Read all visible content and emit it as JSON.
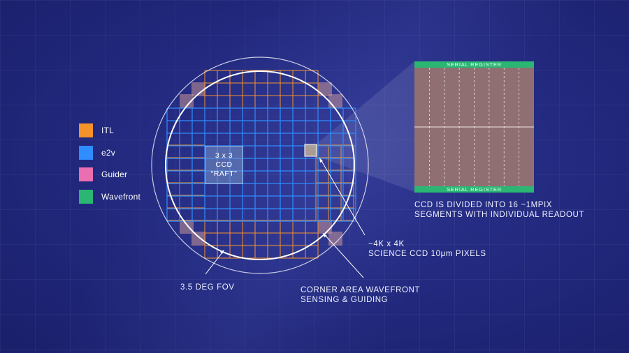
{
  "colors": {
    "itl": "#f5922a",
    "e2v": "#2f8dff",
    "guider": "#e96fb0",
    "wavefront": "#2bb673"
  },
  "legend": [
    {
      "label": "ITL",
      "color": "#f5922a"
    },
    {
      "label": "e2v",
      "color": "#2f8dff"
    },
    {
      "label": "Guider",
      "color": "#e96fb0"
    },
    {
      "label": "Wavefront",
      "color": "#2bb673"
    }
  ],
  "raft": {
    "line1": "3 x 3",
    "line2": "CCD",
    "line3": "“RAFT”"
  },
  "labels": {
    "fov": "3.5 DEG FOV",
    "corner_line1": "CORNER AREA WAVEFRONT",
    "corner_line2": "SENSING & GUIDING",
    "ccd_line1": "~4K x 4K",
    "ccd_line2": "SCIENCE CCD 10μm PIXELS",
    "segments_line1": "CCD IS DIVIDED INTO 16 ~1MPIX",
    "segments_line2": "SEGMENTS WITH INDIVIDUAL READOUT"
  },
  "ccd_detail": {
    "top_register": "SERIAL REGISTER",
    "bottom_register": "SERIAL REGISTER"
  }
}
